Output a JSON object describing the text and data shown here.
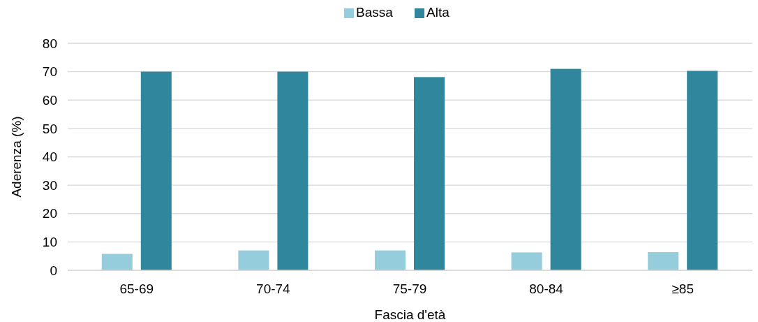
{
  "chart_data": {
    "type": "bar",
    "xlabel": "Fascia d'età",
    "ylabel": "Aderenza (%)",
    "categories": [
      "65-69",
      "70-74",
      "75-79",
      "80-84",
      "≥85"
    ],
    "series": [
      {
        "name": "Bassa",
        "color": "#96cddd",
        "values": [
          5.8,
          7.0,
          7.0,
          6.3,
          6.4
        ]
      },
      {
        "name": "Alta",
        "color": "#30869c",
        "values": [
          70.0,
          70.0,
          68.1,
          71.0,
          70.3
        ]
      }
    ],
    "ylim": [
      0,
      80
    ],
    "yticks": [
      0,
      10,
      20,
      30,
      40,
      50,
      60,
      70,
      80
    ],
    "grid": "y",
    "legend": "top"
  }
}
